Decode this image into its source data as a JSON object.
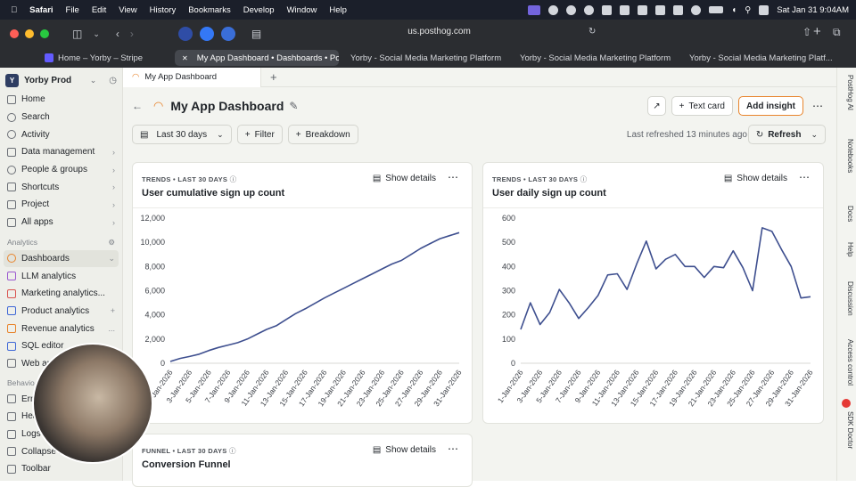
{
  "menubar": {
    "items": [
      "Safari",
      "File",
      "Edit",
      "View",
      "History",
      "Bookmarks",
      "Develop",
      "Window",
      "Help"
    ],
    "datetime": "Sat Jan 31  9:04AM"
  },
  "browser": {
    "url": "us.posthog.com",
    "tabs": [
      {
        "label": "Home – Yorby – Stripe",
        "active": false
      },
      {
        "label": "My App Dashboard • Dashboards • Po...",
        "active": true
      },
      {
        "label": "Yorby - Social Media Marketing Platform",
        "active": false
      },
      {
        "label": "Yorby - Social Media Marketing Platform",
        "active": false
      },
      {
        "label": "Yorby - Social Media Marketing Platf...",
        "active": false
      }
    ]
  },
  "sidebar": {
    "project": "Yorby Prod",
    "project_badge": "Y",
    "items": [
      {
        "label": "Home"
      },
      {
        "label": "Search"
      },
      {
        "label": "Activity"
      },
      {
        "label": "Data management"
      },
      {
        "label": "People & groups"
      },
      {
        "label": "Shortcuts"
      },
      {
        "label": "Project"
      },
      {
        "label": "All apps"
      }
    ],
    "section_analytics": "Analytics",
    "analytics_items": [
      {
        "label": "Dashboards"
      },
      {
        "label": "LLM analytics"
      },
      {
        "label": "Marketing analytics..."
      },
      {
        "label": "Product analytics"
      },
      {
        "label": "Revenue analytics"
      },
      {
        "label": "SQL editor"
      },
      {
        "label": "Web an"
      }
    ],
    "section_behavior": "Behavio",
    "behavior_items": [
      {
        "label": "Erro"
      },
      {
        "label": "Hea"
      },
      {
        "label": "Logs"
      },
      {
        "label": "Collapse nav"
      },
      {
        "label": "Toolbar"
      }
    ]
  },
  "page": {
    "tab_label": "My App Dashboard",
    "title": "My App Dashboard",
    "text_card_label": "Text card",
    "add_insight_label": "Add insight",
    "date_filter": "Last 30 days",
    "filter_label": "Filter",
    "breakdown_label": "Breakdown",
    "last_refreshed": "Last refreshed 13 minutes ago",
    "refresh_label": "Refresh"
  },
  "cards": [
    {
      "kicker": "TRENDS • LAST 30 DAYS",
      "title": "User cumulative sign up count",
      "details": "Show details"
    },
    {
      "kicker": "TRENDS • LAST 30 DAYS",
      "title": "User daily sign up count",
      "details": "Show details"
    },
    {
      "kicker": "FUNNEL • LAST 30 DAYS",
      "title": "Conversion Funnel",
      "details": "Show details"
    }
  ],
  "right_rail": [
    "PostHog AI",
    "Notebooks",
    "Docs",
    "Help",
    "Discussion",
    "Access control",
    "SDK Doctor"
  ],
  "chart_data": [
    {
      "type": "line",
      "title": "User cumulative sign up count",
      "ylim": [
        0,
        12000
      ],
      "yticks": [
        "0",
        "2,000",
        "4,000",
        "6,000",
        "8,000",
        "10,000",
        "12,000"
      ],
      "xticks": [
        "1-Jan-2026",
        "3-Jan-2026",
        "5-Jan-2026",
        "7-Jan-2026",
        "9-Jan-2026",
        "11-Jan-2026",
        "13-Jan-2026",
        "15-Jan-2026",
        "17-Jan-2026",
        "19-Jan-2026",
        "21-Jan-2026",
        "23-Jan-2026",
        "25-Jan-2026",
        "27-Jan-2026",
        "29-Jan-2026",
        "31-Jan-2026"
      ],
      "x": [
        "1-Jan-2026",
        "2-Jan-2026",
        "3-Jan-2026",
        "4-Jan-2026",
        "5-Jan-2026",
        "6-Jan-2026",
        "7-Jan-2026",
        "8-Jan-2026",
        "9-Jan-2026",
        "10-Jan-2026",
        "11-Jan-2026",
        "12-Jan-2026",
        "13-Jan-2026",
        "14-Jan-2026",
        "15-Jan-2026",
        "16-Jan-2026",
        "17-Jan-2026",
        "18-Jan-2026",
        "19-Jan-2026",
        "20-Jan-2026",
        "21-Jan-2026",
        "22-Jan-2026",
        "23-Jan-2026",
        "24-Jan-2026",
        "25-Jan-2026",
        "26-Jan-2026",
        "27-Jan-2026",
        "28-Jan-2026",
        "29-Jan-2026",
        "30-Jan-2026",
        "31-Jan-2026"
      ],
      "values": [
        150,
        400,
        560,
        750,
        1050,
        1300,
        1500,
        1700,
        2000,
        2400,
        2800,
        3100,
        3600,
        4100,
        4500,
        4950,
        5400,
        5800,
        6200,
        6600,
        7000,
        7400,
        7800,
        8200,
        8500,
        9000,
        9500,
        9900,
        10300,
        10550,
        10800
      ]
    },
    {
      "type": "line",
      "title": "User daily sign up count",
      "ylim": [
        0,
        600
      ],
      "yticks": [
        "0",
        "100",
        "200",
        "300",
        "400",
        "500",
        "600"
      ],
      "xticks": [
        "1-Jan-2026",
        "3-Jan-2026",
        "5-Jan-2026",
        "7-Jan-2026",
        "9-Jan-2026",
        "11-Jan-2026",
        "13-Jan-2026",
        "15-Jan-2026",
        "17-Jan-2026",
        "19-Jan-2026",
        "21-Jan-2026",
        "23-Jan-2026",
        "25-Jan-2026",
        "27-Jan-2026",
        "29-Jan-2026",
        "31-Jan-2026"
      ],
      "x": [
        "1-Jan-2026",
        "2-Jan-2026",
        "3-Jan-2026",
        "4-Jan-2026",
        "5-Jan-2026",
        "6-Jan-2026",
        "7-Jan-2026",
        "8-Jan-2026",
        "9-Jan-2026",
        "10-Jan-2026",
        "11-Jan-2026",
        "12-Jan-2026",
        "13-Jan-2026",
        "14-Jan-2026",
        "15-Jan-2026",
        "16-Jan-2026",
        "17-Jan-2026",
        "18-Jan-2026",
        "19-Jan-2026",
        "20-Jan-2026",
        "21-Jan-2026",
        "22-Jan-2026",
        "23-Jan-2026",
        "24-Jan-2026",
        "25-Jan-2026",
        "26-Jan-2026",
        "27-Jan-2026",
        "28-Jan-2026",
        "29-Jan-2026",
        "30-Jan-2026",
        "31-Jan-2026"
      ],
      "values": [
        140,
        250,
        160,
        210,
        305,
        250,
        185,
        230,
        280,
        365,
        370,
        305,
        410,
        505,
        390,
        430,
        450,
        400,
        400,
        355,
        400,
        395,
        465,
        395,
        300,
        560,
        545,
        470,
        400,
        270,
        275
      ]
    }
  ],
  "colors": {
    "accent": "#e8842c",
    "line": "#3e4f8f",
    "sidebar_bg": "#eeefea"
  }
}
